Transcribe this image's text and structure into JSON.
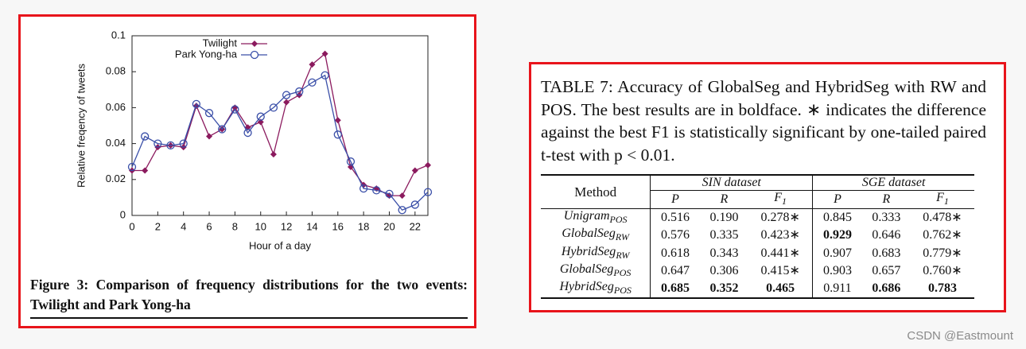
{
  "chart_data": {
    "type": "line",
    "x_label": "Hour of a day",
    "y_label": "Relative freqency of tweets",
    "x": [
      0,
      1,
      2,
      3,
      4,
      5,
      6,
      7,
      8,
      9,
      10,
      11,
      12,
      13,
      14,
      15,
      16,
      17,
      18,
      19,
      20,
      21,
      22,
      23
    ],
    "series": [
      {
        "name": "Twilight",
        "color": "#8b1a5e",
        "marker": "diamond",
        "values": [
          0.025,
          0.025,
          0.038,
          0.039,
          0.038,
          0.061,
          0.044,
          0.048,
          0.06,
          0.049,
          0.052,
          0.034,
          0.063,
          0.067,
          0.084,
          0.09,
          0.053,
          0.027,
          0.017,
          0.015,
          0.011,
          0.011,
          0.025,
          0.028
        ]
      },
      {
        "name": "Park Yong-ha",
        "color": "#3a4fa8",
        "marker": "circle",
        "values": [
          0.027,
          0.044,
          0.04,
          0.039,
          0.04,
          0.062,
          0.057,
          0.048,
          0.059,
          0.046,
          0.055,
          0.06,
          0.067,
          0.069,
          0.074,
          0.078,
          0.045,
          0.03,
          0.015,
          0.014,
          0.012,
          0.003,
          0.006,
          0.013
        ]
      }
    ],
    "xlim": [
      0,
      23
    ],
    "xticks": [
      0,
      2,
      4,
      6,
      8,
      10,
      12,
      14,
      16,
      18,
      20,
      22
    ],
    "ylim": [
      0,
      0.1
    ],
    "yticks": [
      0,
      0.02,
      0.04,
      0.06,
      0.08,
      0.1
    ],
    "grid": false,
    "legend": "top-left"
  },
  "figure_caption": "Figure 3: Comparison of frequency distributions for the two events: Twilight and Park Yong-ha",
  "table": {
    "caption": "TABLE 7: Accuracy of GlobalSeg and HybridSeg with RW and POS. The best results are in boldface. ∗ indicates the difference against the best F1 is statistically significant by one-tailed paired t-test with p < 0.01.",
    "method_header": "Method",
    "groups": [
      "SIN dataset",
      "SGE dataset"
    ],
    "columns": [
      {
        "name": "P"
      },
      {
        "name": "R"
      },
      {
        "name": "F",
        "sub": "1"
      }
    ],
    "rows": [
      {
        "name": "Unigram",
        "sub": "POS",
        "values": [
          "0.516",
          "0.190",
          "0.278∗",
          "0.845",
          "0.333",
          "0.478∗"
        ],
        "bold": [
          false,
          false,
          false,
          false,
          false,
          false
        ]
      },
      {
        "name": "GlobalSeg",
        "sub": "RW",
        "values": [
          "0.576",
          "0.335",
          "0.423∗",
          "0.929",
          "0.646",
          "0.762∗"
        ],
        "bold": [
          false,
          false,
          false,
          true,
          false,
          false
        ]
      },
      {
        "name": "HybridSeg",
        "sub": "RW",
        "values": [
          "0.618",
          "0.343",
          "0.441∗",
          "0.907",
          "0.683",
          "0.779∗"
        ],
        "bold": [
          false,
          false,
          false,
          false,
          false,
          false
        ]
      },
      {
        "name": "GlobalSeg",
        "sub": "POS",
        "values": [
          "0.647",
          "0.306",
          "0.415∗",
          "0.903",
          "0.657",
          "0.760∗"
        ],
        "bold": [
          false,
          false,
          false,
          false,
          false,
          false
        ]
      },
      {
        "name": "HybridSeg",
        "sub": "POS",
        "values": [
          "0.685",
          "0.352",
          "0.465",
          "0.911",
          "0.686",
          "0.783"
        ],
        "bold": [
          true,
          true,
          true,
          false,
          true,
          true
        ]
      }
    ]
  },
  "watermark": "CSDN @Eastmount"
}
